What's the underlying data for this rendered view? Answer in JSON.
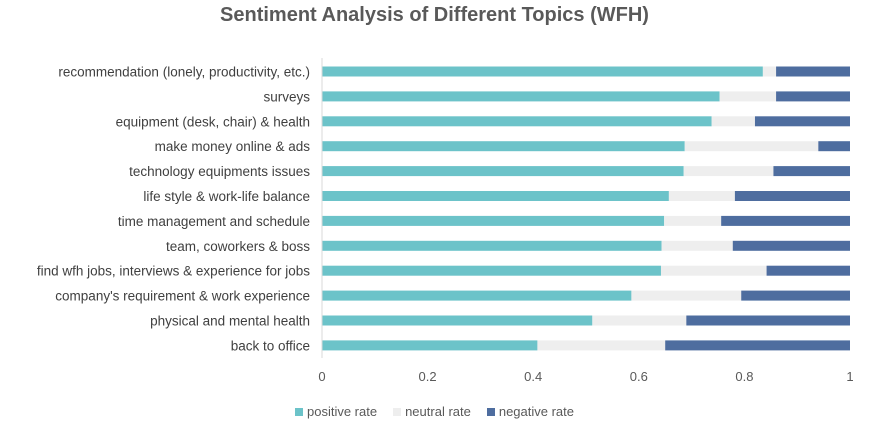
{
  "chart_data": {
    "type": "bar",
    "orientation": "horizontal",
    "stacked": true,
    "title": "Sentiment Analysis of Different Topics (WFH)",
    "xlim": [
      0,
      1
    ],
    "xticks": [
      "0",
      "0.2",
      "0.4",
      "0.6",
      "0.8",
      "1"
    ],
    "categories": [
      "recommendation (lonely, productivity, etc.)",
      "surveys",
      "equipment (desk, chair) & health",
      "make money online & ads",
      "technology equipments issues",
      "life style & work-life balance",
      "time management and schedule",
      "team, coworkers & boss",
      "find wfh jobs, interviews & experience for jobs",
      "company's requirement & work experience",
      "physical and mental health",
      "back to office"
    ],
    "series": [
      {
        "name": "positive rate",
        "color": "#6cc3c9",
        "values": [
          0.835,
          0.753,
          0.738,
          0.687,
          0.685,
          0.657,
          0.648,
          0.643,
          0.642,
          0.586,
          0.512,
          0.408
        ]
      },
      {
        "name": "neutral rate",
        "color": "#eeeeee",
        "values": [
          0.025,
          0.107,
          0.082,
          0.253,
          0.17,
          0.125,
          0.108,
          0.135,
          0.2,
          0.208,
          0.178,
          0.242
        ]
      },
      {
        "name": "negative rate",
        "color": "#4e6d9f",
        "values": [
          0.14,
          0.14,
          0.18,
          0.06,
          0.145,
          0.218,
          0.244,
          0.222,
          0.158,
          0.206,
          0.31,
          0.35
        ]
      }
    ],
    "legend_position": "bottom",
    "grid": false
  }
}
